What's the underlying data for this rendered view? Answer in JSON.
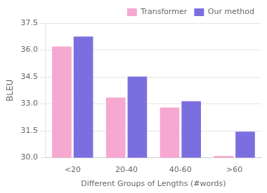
{
  "chart_data": {
    "type": "bar",
    "categories": [
      "<20",
      "20-40",
      "40-60",
      ">60"
    ],
    "series": [
      {
        "name": "Transformer",
        "color": "#f7a8d0",
        "values": [
          36.2,
          33.35,
          32.8,
          30.1
        ]
      },
      {
        "name": "Our method",
        "color": "#7b6fe0",
        "values": [
          36.75,
          34.52,
          33.15,
          31.45
        ]
      }
    ],
    "xlabel": "Different Groups of Lengths (#words)",
    "ylabel": "BLEU",
    "ylim": [
      30.0,
      37.5
    ],
    "yticks": [
      {
        "value": 30.0,
        "label": "30.0"
      },
      31.5,
      {
        "value": 33.0,
        "label": "33.0"
      },
      34.5,
      {
        "value": 36.0,
        "label": "36.0"
      },
      37.5
    ],
    "grid": true,
    "legend": "upper right"
  }
}
